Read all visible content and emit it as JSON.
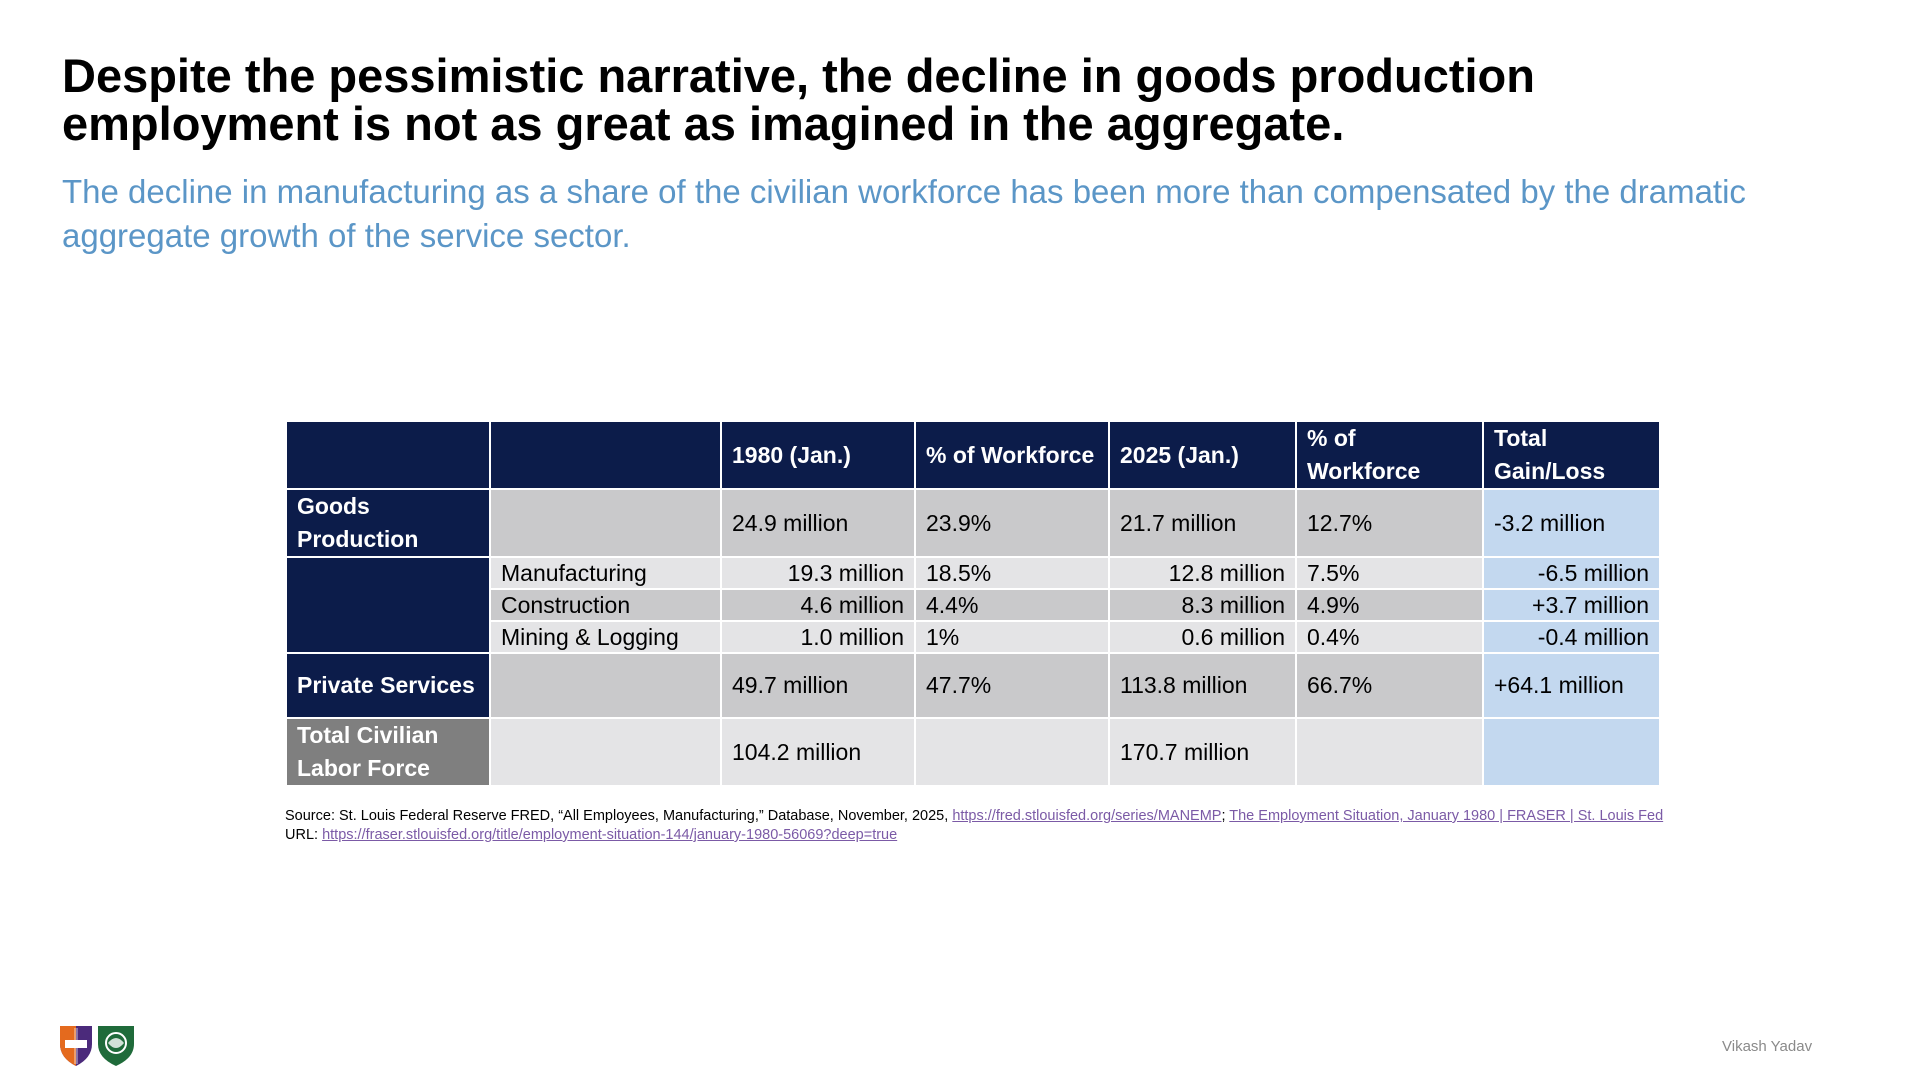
{
  "title": "Despite the pessimistic narrative, the decline in goods production employment is not as great as imagined in the aggregate.",
  "subtitle": "The decline in manufacturing as a share of the civilian workforce has been more than compensated by the dramatic aggregate growth of the service sector.",
  "table": {
    "headers": [
      "",
      "",
      "1980 (Jan.)",
      "% of Workforce",
      "2025 (Jan.)",
      "% of Workforce",
      "Total Gain/Loss"
    ],
    "goods": {
      "label": "Goods Production",
      "v1980": "24.9 million",
      "p1980": "23.9%",
      "v2025": "21.7 million",
      "p2025": "12.7%",
      "change": "-3.2 million"
    },
    "sub_rows": [
      {
        "label": "Manufacturing",
        "v1980": "19.3 million",
        "p1980": "18.5%",
        "v2025": "12.8 million",
        "p2025": "7.5%",
        "change": "-6.5 million"
      },
      {
        "label": "Construction",
        "v1980": "4.6 million",
        "p1980": "4.4%",
        "v2025": "8.3 million",
        "p2025": "4.9%",
        "change": "+3.7 million"
      },
      {
        "label": "Mining & Logging",
        "v1980": "1.0 million",
        "p1980": "1%",
        "v2025": "0.6 million",
        "p2025": "0.4%",
        "change": "-0.4 million"
      }
    ],
    "services": {
      "label": "Private Services",
      "v1980": "49.7 million",
      "p1980": "47.7%",
      "v2025": "113.8 million",
      "p2025": "66.7%",
      "change": "+64.1 million"
    },
    "total": {
      "label": "Total Civilian Labor Force",
      "v1980": "104.2 million",
      "v2025": "170.7 million"
    }
  },
  "source": {
    "prefix": "Source: St. Louis Federal Reserve FRED, “All Employees, Manufacturing,” Database, November, 2025, ",
    "link1": "https://fred.stlouisfed.org/series/MANEMP",
    "sep": "; ",
    "link2": "The Employment Situation, January 1980 | FRASER | St. Louis Fed",
    "url_label": " URL: ",
    "link3": "https://fraser.stlouisfed.org/title/employment-situation-144/january-1980-56069?deep=true"
  },
  "author": "Vikash Yadav",
  "colors": {
    "navy": "#0c1c4a",
    "subtitle": "#5b96c7",
    "gray": "#c9c9cb",
    "light_gray": "#e4e4e6",
    "blue": "#c3d8ef",
    "link": "#7b5aa6"
  },
  "logos": [
    "shield-logo",
    "seal-logo"
  ]
}
